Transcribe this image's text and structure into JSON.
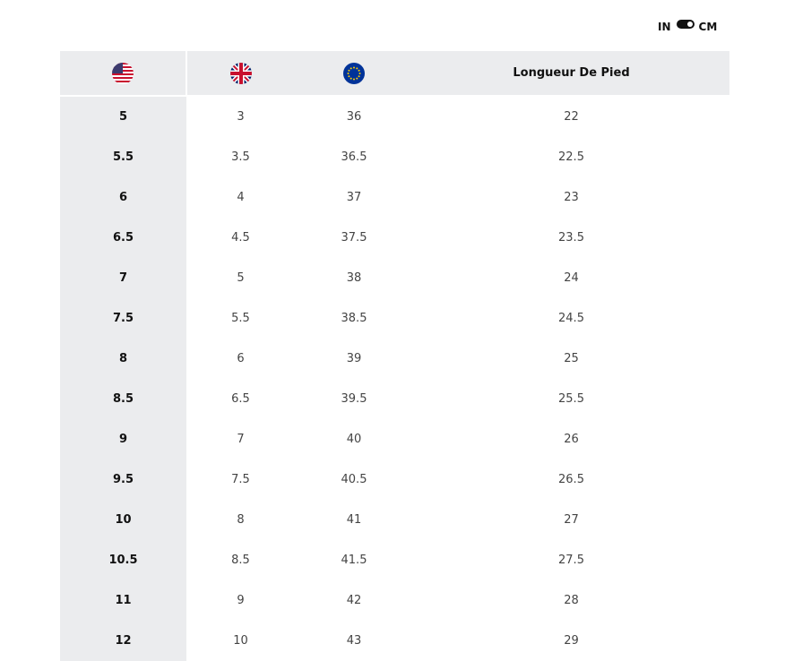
{
  "unit_toggle": {
    "left": "IN",
    "right": "CM",
    "selected": "CM"
  },
  "header": {
    "us_icon": "us-flag-icon",
    "uk_icon": "uk-flag-icon",
    "eu_icon": "eu-flag-icon",
    "length": "Longueur De Pied"
  },
  "rows": [
    [
      "5",
      "3",
      "36",
      "22"
    ],
    [
      "5.5",
      "3.5",
      "36.5",
      "22.5"
    ],
    [
      "6",
      "4",
      "37",
      "23"
    ],
    [
      "6.5",
      "4.5",
      "37.5",
      "23.5"
    ],
    [
      "7",
      "5",
      "38",
      "24"
    ],
    [
      "7.5",
      "5.5",
      "38.5",
      "24.5"
    ],
    [
      "8",
      "6",
      "39",
      "25"
    ],
    [
      "8.5",
      "6.5",
      "39.5",
      "25.5"
    ],
    [
      "9",
      "7",
      "40",
      "26"
    ],
    [
      "9.5",
      "7.5",
      "40.5",
      "26.5"
    ],
    [
      "10",
      "8",
      "41",
      "27"
    ],
    [
      "10.5",
      "8.5",
      "41.5",
      "27.5"
    ],
    [
      "11",
      "9",
      "42",
      "28"
    ],
    [
      "12",
      "10",
      "43",
      "29"
    ]
  ]
}
